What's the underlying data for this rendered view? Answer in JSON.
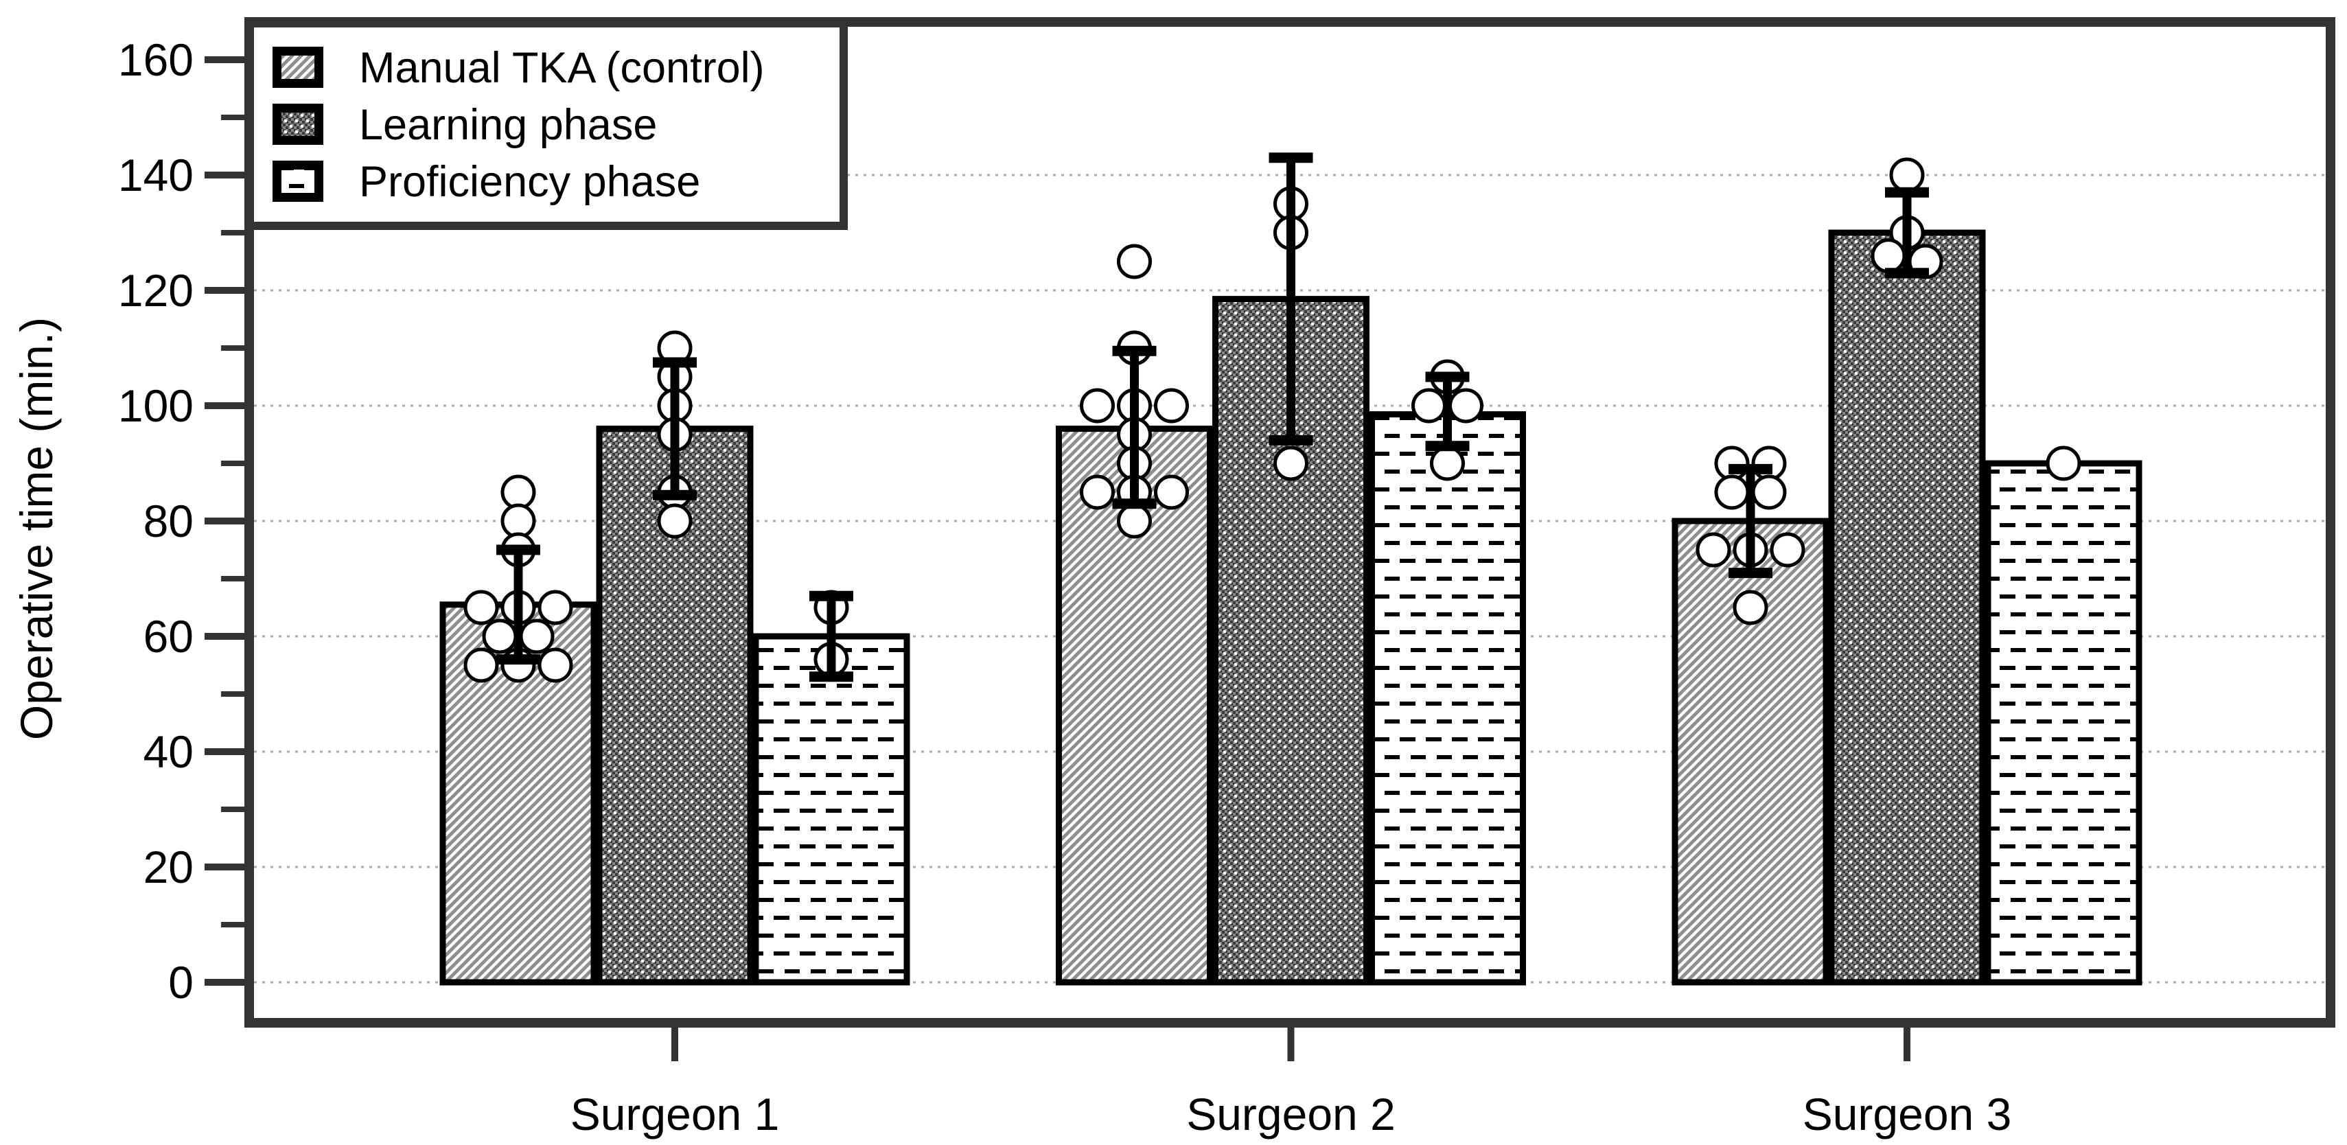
{
  "chart_data": {
    "type": "bar",
    "title": "",
    "xlabel": "",
    "ylabel": "Operative time (min.)",
    "ylim": [
      0,
      160
    ],
    "yticks": [
      0,
      20,
      40,
      60,
      80,
      100,
      120,
      140,
      160
    ],
    "minor_tick_step": 10,
    "grid": "horizontal dotted lines at 0 to 140 in steps of 20",
    "legend_position": "top-left inside plot",
    "categories": [
      "Surgeon 1",
      "Surgeon 2",
      "Surgeon 3"
    ],
    "series": [
      {
        "name": "Manual TKA (control)",
        "pattern": "diagonal-hatch",
        "values": [
          65.5,
          96,
          80
        ],
        "error_bars": [
          [
            56,
            75
          ],
          [
            83,
            109.5
          ],
          [
            71,
            89
          ]
        ],
        "points": [
          [
            85,
            80,
            75,
            65,
            65,
            65,
            60,
            60,
            55,
            55,
            55
          ],
          [
            125,
            110,
            100,
            100,
            100,
            95,
            90,
            85,
            85,
            85,
            80
          ],
          [
            90,
            90,
            85,
            85,
            75,
            75,
            75,
            65
          ]
        ]
      },
      {
        "name": "Learning phase",
        "pattern": "dark-checker-dots",
        "values": [
          96,
          118.5,
          130
        ],
        "error_bars": [
          [
            84.5,
            107.5
          ],
          [
            94,
            143
          ],
          [
            123,
            137
          ]
        ],
        "points": [
          [
            110,
            105,
            100,
            95,
            85,
            80
          ],
          [
            135,
            130,
            90
          ],
          [
            140,
            130,
            126,
            125
          ]
        ]
      },
      {
        "name": "Proficiency phase",
        "pattern": "horizontal-dashes",
        "values": [
          60,
          98.5,
          90
        ],
        "error_bars": [
          [
            53,
            67
          ],
          [
            93,
            105
          ],
          null
        ],
        "points": [
          [
            65,
            56
          ],
          [
            105,
            100,
            100,
            90
          ],
          [
            90
          ]
        ]
      }
    ],
    "colors": {
      "frame": "#333333",
      "grid": "#a8a8a8",
      "bar_border": "#000000",
      "text": "#000000",
      "hatch_line": "#8f8f8f",
      "checker_base": "#858585",
      "checker_dark": "#3c3c3c",
      "dash_ink": "#000000",
      "point_fill": "#ffffff",
      "point_stroke": "#000000"
    }
  }
}
